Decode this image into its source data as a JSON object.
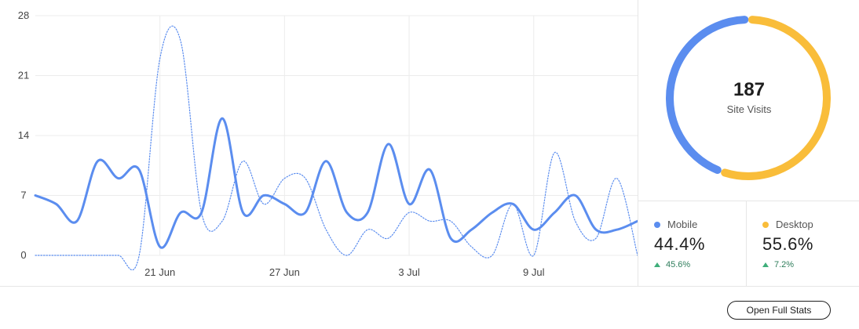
{
  "chart_data": {
    "type": "line",
    "x": [
      "15 Jun",
      "16 Jun",
      "17 Jun",
      "18 Jun",
      "19 Jun",
      "20 Jun",
      "21 Jun",
      "22 Jun",
      "23 Jun",
      "24 Jun",
      "25 Jun",
      "26 Jun",
      "27 Jun",
      "28 Jun",
      "29 Jun",
      "30 Jun",
      "1 Jul",
      "2 Jul",
      "3 Jul",
      "4 Jul",
      "5 Jul",
      "6 Jul",
      "7 Jul",
      "8 Jul",
      "9 Jul",
      "10 Jul",
      "11 Jul",
      "12 Jul",
      "13 Jul",
      "14 Jul"
    ],
    "x_ticks": [
      "21 Jun",
      "27 Jun",
      "3 Jul",
      "9 Jul"
    ],
    "ylim": [
      0,
      28
    ],
    "y_ticks": [
      "0",
      "7",
      "14",
      "21",
      "28"
    ],
    "grid": true,
    "series": [
      {
        "style": "solid",
        "color": "#5b8def",
        "values": [
          7,
          6,
          4,
          11,
          9,
          10,
          1,
          5,
          5,
          16,
          5,
          7,
          6,
          5,
          11,
          5,
          5,
          13,
          6,
          10,
          2,
          3,
          5,
          6,
          3,
          5,
          7,
          3,
          3,
          4
        ]
      },
      {
        "style": "dotted",
        "color": "#5b8def",
        "values": [
          0,
          0,
          0,
          0,
          0,
          0,
          23,
          25,
          5,
          4,
          11,
          6,
          9,
          9,
          3,
          0,
          3,
          2,
          5,
          4,
          4,
          1,
          0,
          6,
          0,
          12,
          4,
          2,
          9,
          0
        ]
      }
    ]
  },
  "summary": {
    "total": "187",
    "label": "Site Visits"
  },
  "donut": {
    "mobile_fraction": 0.444,
    "desktop_fraction": 0.556
  },
  "legend": {
    "mobile": {
      "label": "Mobile",
      "value": "44.4%",
      "change": "45.6%",
      "color": "#5b8def"
    },
    "desktop": {
      "label": "Desktop",
      "value": "55.6%",
      "change": "7.2%",
      "color": "#f9bd3a"
    }
  },
  "footer": {
    "button": "Open Full Stats"
  }
}
